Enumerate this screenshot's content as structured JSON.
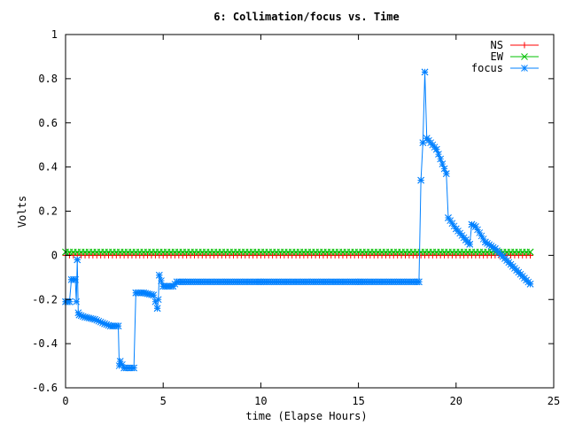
{
  "chart_data": {
    "type": "line",
    "title": "6: Collimation/focus vs. Time",
    "xlabel": "time (Elapse Hours)",
    "ylabel": "Volts",
    "xlim": [
      0,
      25
    ],
    "ylim": [
      -0.6,
      1
    ],
    "xticks": [
      0,
      5,
      10,
      15,
      20,
      25
    ],
    "xtick_labels": [
      "0",
      "5",
      "10",
      "15",
      "20",
      "25"
    ],
    "yticks": [
      -0.6,
      -0.4,
      -0.2,
      0,
      0.2,
      0.4,
      0.6,
      0.8,
      1
    ],
    "ytick_labels": [
      "-0.6",
      "-0.4",
      "-0.2",
      "0",
      "0.2",
      "0.4",
      "0.6",
      "0.8",
      "1"
    ],
    "legend_position": "top-right",
    "series": [
      {
        "name": "NS",
        "color": "#ff0000",
        "marker": "plus",
        "x": [
          0,
          23.8
        ],
        "y": [
          0.0,
          0.0
        ],
        "sample_step": 0.2
      },
      {
        "name": "EW",
        "color": "#00c000",
        "marker": "cross",
        "x": [
          0,
          23.8
        ],
        "y": [
          0.015,
          0.015
        ],
        "sample_step": 0.2
      },
      {
        "name": "focus",
        "color": "#0080ff",
        "marker": "star",
        "sample_step": 0.1,
        "x": [
          0,
          0.2,
          0.3,
          0.5,
          0.55,
          0.6,
          0.65,
          0.7,
          1.0,
          1.5,
          2.0,
          2.3,
          2.5,
          2.7,
          2.75,
          2.8,
          3.0,
          3.5,
          3.6,
          4.0,
          4.5,
          4.7,
          4.75,
          4.8,
          5.0,
          5.2,
          5.5,
          5.7,
          6.0,
          10.0,
          15.0,
          18.0,
          18.1,
          18.2,
          18.3,
          18.4,
          18.5,
          19.0,
          19.5,
          19.6,
          20.0,
          20.5,
          20.7,
          20.8,
          21.0,
          21.5,
          22.0,
          23.8
        ],
        "y": [
          -0.21,
          -0.21,
          -0.11,
          -0.11,
          -0.21,
          -0.02,
          -0.26,
          -0.27,
          -0.28,
          -0.29,
          -0.31,
          -0.32,
          -0.32,
          -0.32,
          -0.5,
          -0.48,
          -0.51,
          -0.51,
          -0.17,
          -0.17,
          -0.18,
          -0.24,
          -0.2,
          -0.09,
          -0.14,
          -0.14,
          -0.14,
          -0.12,
          -0.12,
          -0.12,
          -0.12,
          -0.12,
          -0.12,
          0.34,
          0.51,
          0.83,
          0.53,
          0.48,
          0.37,
          0.17,
          0.12,
          0.07,
          0.05,
          0.14,
          0.13,
          0.06,
          0.03,
          -0.13
        ]
      }
    ]
  }
}
